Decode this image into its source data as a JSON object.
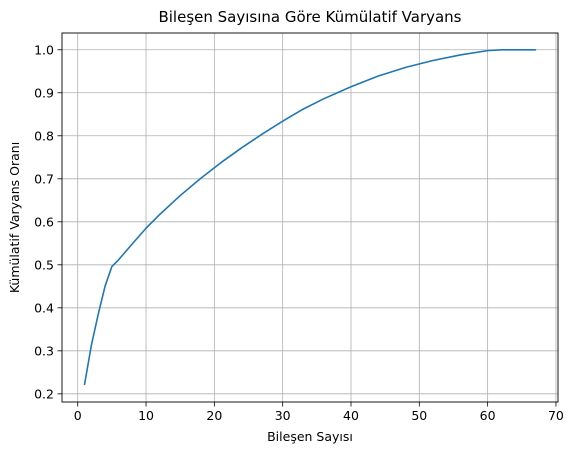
{
  "chart_data": {
    "type": "line",
    "title": "Bileşen Sayısına Göre Kümülatif Varyans",
    "xlabel": "Bileşen Sayısı",
    "ylabel": "Kümülatif Varyans Oranı",
    "xlim": [
      -2.3,
      70.3
    ],
    "ylim": [
      0.181,
      1.039
    ],
    "xticks": [
      0,
      10,
      20,
      30,
      40,
      50,
      60,
      70
    ],
    "yticks": [
      0.2,
      0.3,
      0.4,
      0.5,
      0.6,
      0.7,
      0.8,
      0.9,
      1.0
    ],
    "xtick_labels": [
      "0",
      "10",
      "20",
      "30",
      "40",
      "50",
      "60",
      "70"
    ],
    "ytick_labels": [
      "0.2",
      "0.3",
      "0.4",
      "0.5",
      "0.6",
      "0.7",
      "0.8",
      "0.9",
      "1.0"
    ],
    "grid": true,
    "line_color": "#1f77b4",
    "series": [
      {
        "x": [
          1,
          2,
          3,
          4,
          5,
          6,
          8,
          10,
          12,
          15,
          18,
          21,
          24,
          27,
          30,
          33,
          36,
          40,
          44,
          48,
          52,
          56,
          60,
          62,
          64,
          67
        ],
        "y": [
          0.222,
          0.313,
          0.385,
          0.45,
          0.496,
          0.512,
          0.549,
          0.585,
          0.617,
          0.661,
          0.701,
          0.738,
          0.772,
          0.804,
          0.834,
          0.862,
          0.886,
          0.914,
          0.939,
          0.959,
          0.975,
          0.988,
          0.998,
          1.0,
          1.0,
          1.0
        ]
      }
    ]
  }
}
